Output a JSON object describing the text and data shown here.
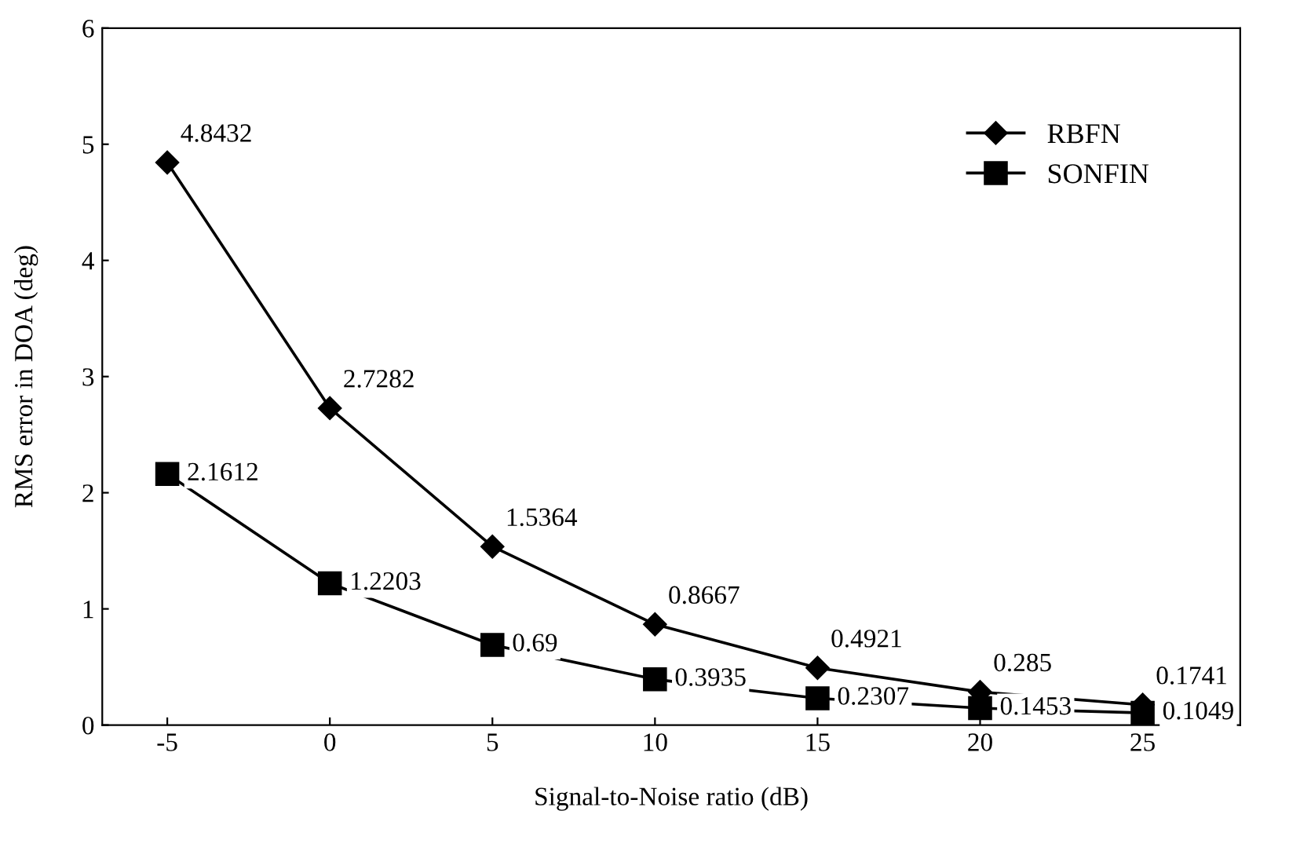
{
  "chart_data": {
    "type": "line",
    "xlabel": "Signal-to-Noise ratio (dB)",
    "ylabel": "RMS error in DOA (deg)",
    "categories": [
      "-5",
      "0",
      "5",
      "10",
      "15",
      "20",
      "25"
    ],
    "series": [
      {
        "name": "RBFN",
        "color": "#000000",
        "marker": "diamond",
        "values": [
          4.8432,
          2.7282,
          1.5364,
          0.8667,
          0.4921,
          0.285,
          0.1741
        ]
      },
      {
        "name": "SONFIN",
        "color": "#000000",
        "marker": "square",
        "values": [
          2.1612,
          1.2203,
          0.69,
          0.3935,
          0.2307,
          0.1453,
          0.1049
        ]
      }
    ],
    "ylim": [
      0,
      6
    ],
    "yticks": [
      0,
      1,
      2,
      3,
      4,
      5,
      6
    ],
    "grid": false,
    "legend": "top right",
    "data_labels": true,
    "line_style": "solid"
  }
}
